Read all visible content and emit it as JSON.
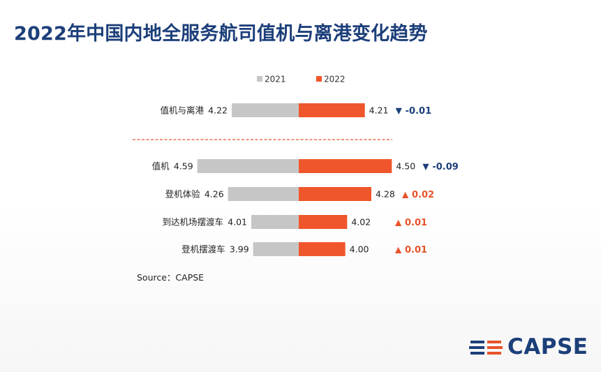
{
  "title": "2022年中国内地全服务航司值机与离港变化趋势",
  "source": "Source：CAPSE",
  "logo_text": "CAPSE",
  "colors": {
    "title": "#1c3f7a",
    "series_2021": "#c6c6c6",
    "series_2022": "#f0562b",
    "down": "#1c3f7a",
    "up": "#e8532a",
    "divider": "#e8532a"
  },
  "chart_data": {
    "type": "bar",
    "orientation": "horizontal-diverging",
    "legend": [
      "2021",
      "2022"
    ],
    "legend_position": "top",
    "categories": [
      "值机与离港",
      "值机",
      "登机体验",
      "到达机场摆渡车",
      "登机摆渡车"
    ],
    "series": [
      {
        "name": "2021",
        "values": [
          4.22,
          4.59,
          4.26,
          4.01,
          3.99
        ],
        "labels": [
          "4.22",
          "4.59",
          "4.26",
          "4.01",
          "3.99"
        ]
      },
      {
        "name": "2022",
        "values": [
          4.21,
          4.5,
          4.28,
          4.02,
          4.0
        ],
        "labels": [
          "4.21",
          "4.50",
          "4.28",
          "4.02",
          "4.00"
        ]
      }
    ],
    "changes": [
      {
        "direction": "down",
        "symbol": "▼",
        "label": "-0.01"
      },
      {
        "direction": "down",
        "symbol": "▼",
        "label": "-0.09"
      },
      {
        "direction": "up",
        "symbol": "▲",
        "label": "0.02"
      },
      {
        "direction": "up",
        "symbol": "▲",
        "label": "0.01"
      },
      {
        "direction": "up",
        "symbol": "▲",
        "label": "0.01"
      }
    ],
    "grid": false
  }
}
